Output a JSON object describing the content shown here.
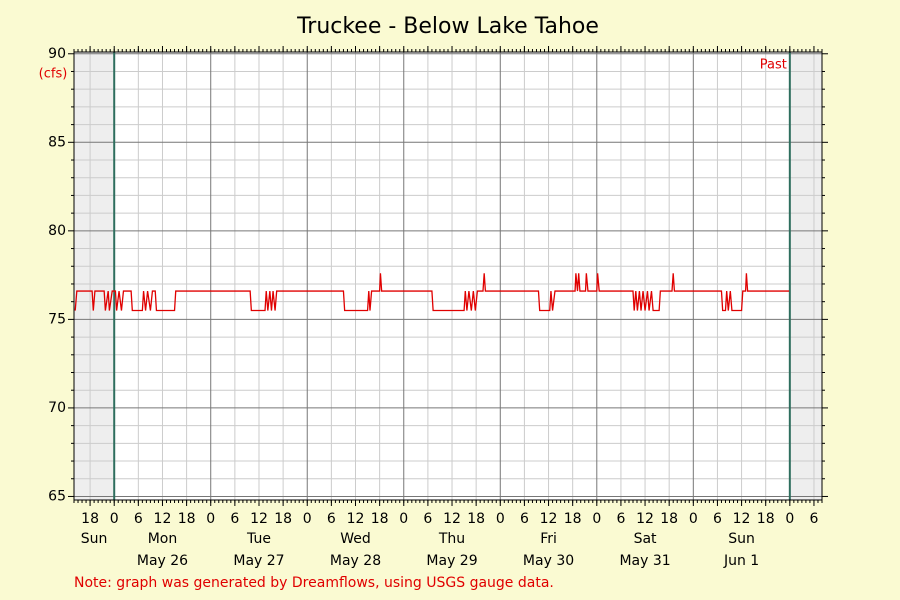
{
  "chart_data": {
    "type": "line",
    "title": "Truckee - Below Lake Tahoe",
    "y_label": "(cfs)",
    "marker_label": "Past",
    "note": "Note: graph was generated by Dreamflows, using USGS gauge data.",
    "color": "#e00000",
    "xlim": [
      -10,
      176
    ],
    "xticks": [
      {
        "value": -6,
        "label": "18"
      },
      {
        "value": 0,
        "label": "0"
      },
      {
        "value": 6,
        "label": "6"
      },
      {
        "value": 12,
        "label": "12"
      },
      {
        "value": 18,
        "label": "18"
      },
      {
        "value": 24,
        "label": "0"
      },
      {
        "value": 30,
        "label": "6"
      },
      {
        "value": 36,
        "label": "12"
      },
      {
        "value": 42,
        "label": "18"
      },
      {
        "value": 48,
        "label": "0"
      },
      {
        "value": 54,
        "label": "6"
      },
      {
        "value": 60,
        "label": "12"
      },
      {
        "value": 66,
        "label": "18"
      },
      {
        "value": 72,
        "label": "0"
      },
      {
        "value": 78,
        "label": "6"
      },
      {
        "value": 84,
        "label": "12"
      },
      {
        "value": 90,
        "label": "18"
      },
      {
        "value": 96,
        "label": "0"
      },
      {
        "value": 102,
        "label": "6"
      },
      {
        "value": 108,
        "label": "12"
      },
      {
        "value": 114,
        "label": "18"
      },
      {
        "value": 120,
        "label": "0"
      },
      {
        "value": 126,
        "label": "6"
      },
      {
        "value": 132,
        "label": "12"
      },
      {
        "value": 138,
        "label": "18"
      },
      {
        "value": 144,
        "label": "0"
      },
      {
        "value": 150,
        "label": "6"
      },
      {
        "value": 156,
        "label": "12"
      },
      {
        "value": 162,
        "label": "18"
      },
      {
        "value": 168,
        "label": "0"
      },
      {
        "value": 174,
        "label": "6"
      }
    ],
    "x_minor_tick_step": 1,
    "days": [
      {
        "start": -24,
        "day": "Sun"
      },
      {
        "start": 0,
        "day": "Mon",
        "date": "May 26"
      },
      {
        "start": 24,
        "day": "Tue",
        "date": "May 27"
      },
      {
        "start": 48,
        "day": "Wed",
        "date": "May 28"
      },
      {
        "start": 72,
        "day": "Thu",
        "date": "May 29"
      },
      {
        "start": 96,
        "day": "Fri",
        "date": "May 30"
      },
      {
        "start": 120,
        "day": "Sat",
        "date": "May 31"
      },
      {
        "start": 144,
        "day": "Sun",
        "date": "Jun 1"
      }
    ],
    "ylim": [
      64.8,
      90.1
    ],
    "yticks": [
      65,
      70,
      75,
      80,
      85,
      90
    ],
    "y_minor_ticks": [
      66,
      67,
      68,
      69,
      71,
      72,
      73,
      74,
      76,
      77,
      78,
      79,
      81,
      82,
      83,
      84,
      86,
      87,
      88,
      89
    ],
    "grid": true,
    "period_markers": [
      0,
      168
    ],
    "x": [
      -9.7,
      -9.3,
      -5.5,
      -5.2,
      -4.8,
      -2.5,
      -2.2,
      -1.5,
      -1.2,
      -0.5,
      0.3,
      0.6,
      1.2,
      1.8,
      2.3,
      4.2,
      4.5,
      7,
      7.3,
      7.8,
      8.3,
      9,
      9.5,
      10.2,
      10.5,
      15,
      15.3,
      33.8,
      34.1,
      37.5,
      37.8,
      38.2,
      38.7,
      39.1,
      39.5,
      40,
      40.4,
      57,
      57.3,
      63,
      63.3,
      63.6,
      64,
      66,
      66.2,
      66.5,
      79,
      79.3,
      87,
      87.3,
      87.7,
      88.2,
      88.8,
      89.3,
      89.8,
      90.3,
      91.7,
      92,
      92.3,
      105.5,
      105.8,
      108.3,
      108.6,
      109,
      109.6,
      114.6,
      114.8,
      115.2,
      115.5,
      115.8,
      117.2,
      117.4,
      117.8,
      120,
      120.2,
      120.6,
      129,
      129.3,
      129.7,
      130.1,
      130.6,
      131,
      131.5,
      132,
      132.6,
      133,
      133.6,
      134,
      135.5,
      135.8,
      138.7,
      139,
      139.3,
      151,
      151.3,
      152,
      152.3,
      152.7,
      153.2,
      153.6,
      156,
      156.3,
      157,
      157.2,
      157.5,
      167.8
    ],
    "values": [
      75.5,
      76.6,
      76.6,
      75.5,
      76.6,
      76.6,
      75.5,
      76.6,
      75.5,
      76.6,
      76.6,
      75.5,
      76.6,
      75.5,
      76.6,
      76.6,
      75.5,
      75.5,
      76.6,
      75.5,
      76.6,
      75.5,
      76.6,
      76.6,
      75.5,
      75.5,
      76.6,
      76.6,
      75.5,
      75.5,
      76.6,
      75.5,
      76.6,
      75.5,
      76.6,
      75.5,
      76.6,
      76.6,
      75.5,
      75.5,
      76.6,
      75.5,
      76.6,
      76.6,
      77.6,
      76.6,
      76.6,
      75.5,
      75.5,
      76.6,
      75.5,
      76.6,
      75.5,
      76.6,
      75.5,
      76.6,
      76.6,
      77.6,
      76.6,
      76.6,
      75.5,
      75.5,
      76.6,
      75.5,
      76.6,
      76.6,
      77.6,
      76.6,
      77.6,
      76.6,
      76.6,
      77.6,
      76.6,
      76.6,
      77.6,
      76.6,
      76.6,
      75.5,
      76.6,
      75.5,
      76.6,
      75.5,
      76.6,
      75.5,
      76.6,
      75.5,
      76.6,
      75.5,
      75.5,
      76.6,
      76.6,
      77.6,
      76.6,
      76.6,
      75.5,
      75.5,
      76.6,
      75.5,
      76.6,
      75.5,
      75.5,
      76.6,
      76.6,
      77.6,
      76.6,
      76.6
    ]
  }
}
